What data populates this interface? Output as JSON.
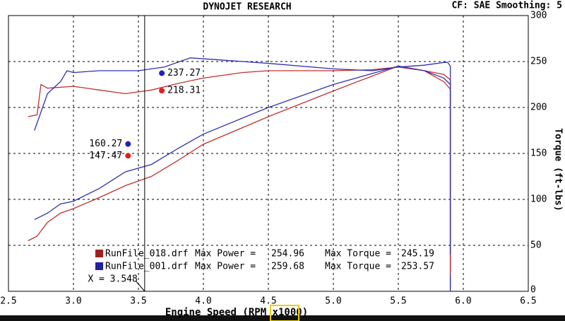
{
  "chart_data": {
    "type": "line",
    "title": "DYNOJET RESEARCH",
    "subtitle": "CF: SAE  Smoothing: 5",
    "x_label": "Engine Speed (RPM x1000)",
    "y_label": "Torque (ft-lbs)",
    "xlim": [
      2.5,
      6.5
    ],
    "xticks": [
      {
        "value": 2.5,
        "label": "2.5"
      },
      {
        "value": 3,
        "label": "3.0"
      },
      {
        "value": 3.5,
        "label": "3.5"
      },
      {
        "value": 4,
        "label": "4.0"
      },
      {
        "value": 4.5,
        "label": "4.5"
      },
      {
        "value": 5,
        "label": "5.0"
      },
      {
        "value": 5.5,
        "label": "5.5"
      },
      {
        "value": 6,
        "label": "6.0"
      },
      {
        "value": 6.5,
        "label": "6.5"
      }
    ],
    "ylim": [
      0,
      300
    ],
    "yticks": [
      0,
      50,
      100,
      150,
      200,
      250,
      300
    ],
    "grid": true,
    "series": [
      {
        "color": "#c03030",
        "x": [
          2.65,
          2.72,
          2.75,
          2.8,
          3.0,
          3.2,
          3.4,
          3.6,
          3.8,
          4.0,
          4.3,
          4.5,
          5.0,
          5.3,
          5.5,
          5.7,
          5.85,
          5.9,
          5.9
        ],
        "values": [
          190,
          192,
          225,
          221,
          223,
          219,
          215,
          219,
          226,
          232,
          238,
          240,
          240,
          241,
          244,
          240,
          236,
          230,
          0
        ]
      },
      {
        "color": "#3030b0",
        "x": [
          2.7,
          2.8,
          2.9,
          2.95,
          3.0,
          3.2,
          3.5,
          3.7,
          3.9,
          4.2,
          4.5,
          5.0,
          5.3,
          5.5,
          5.7,
          5.85,
          5.88,
          5.9,
          5.9
        ],
        "values": [
          175,
          215,
          228,
          240,
          238,
          240,
          240,
          244,
          254,
          251,
          248,
          242,
          240,
          244,
          246,
          249,
          249,
          245,
          0
        ]
      },
      {
        "color": "#c03030",
        "x": [
          2.65,
          2.72,
          2.8,
          2.9,
          3.0,
          3.2,
          3.4,
          3.6,
          3.8,
          4.0,
          4.5,
          5.0,
          5.5,
          5.7,
          5.85,
          5.9,
          5.9
        ],
        "values": [
          55,
          60,
          75,
          85,
          90,
          102,
          115,
          125,
          142,
          160,
          190,
          218,
          245,
          240,
          228,
          220,
          18
        ]
      },
      {
        "color": "#3030b0",
        "x": [
          2.7,
          2.8,
          2.9,
          3.0,
          3.2,
          3.4,
          3.6,
          3.8,
          4.0,
          4.5,
          5.0,
          5.5,
          5.7,
          5.85,
          5.9,
          5.9
        ],
        "values": [
          78,
          85,
          95,
          98,
          112,
          130,
          138,
          155,
          171,
          200,
          225,
          245,
          240,
          232,
          225,
          40
        ]
      }
    ],
    "annotations": [
      {
        "x": 3.68,
        "y": 237.27,
        "color": "#2020c0"
      },
      {
        "x": 3.68,
        "y": 218.31,
        "color": "#e02020"
      },
      {
        "x": 3.42,
        "y": 160.27,
        "color": "#2020c0"
      },
      {
        "x": 3.42,
        "y": 147.47,
        "color": "#e02020"
      }
    ],
    "cursor": {
      "value": 3.548,
      "label": "X = 3.548"
    },
    "legend_labels": {
      "power": "Max Power =",
      "torque": "Max Torque ="
    },
    "runs": [
      {
        "name": "RunFile_018.drf",
        "color": "#a02020",
        "max_power": 254.96,
        "max_torque": 245.19
      },
      {
        "name": "RunFile_001.drf",
        "color": "#2020a0",
        "max_power": 259.68,
        "max_torque": 253.57
      }
    ]
  }
}
